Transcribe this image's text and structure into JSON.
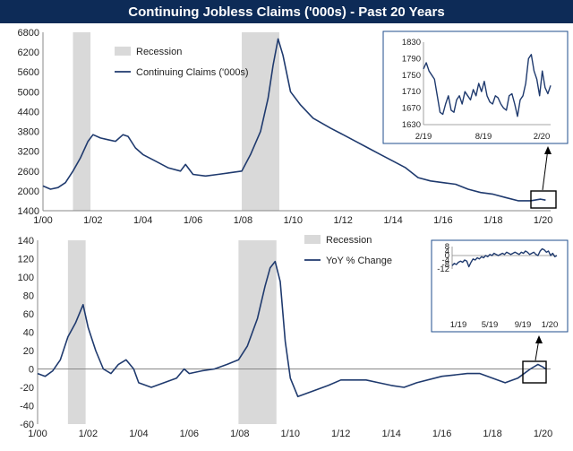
{
  "title": "Continuing Jobless Claims ('000s) - Past 20 Years",
  "colors": {
    "title_bg": "#0d2b57",
    "line": "#1f3a6e",
    "recession": "#d9d9d9",
    "inset_border": "#1f4e8c"
  },
  "chart_data": [
    {
      "id": "top-main",
      "type": "line",
      "title": "",
      "ylim": [
        1400,
        6800
      ],
      "yticks": [
        "6800",
        "6200",
        "5600",
        "5000",
        "4400",
        "3800",
        "3200",
        "2600",
        "2000",
        "1400"
      ],
      "xticks": [
        "1/00",
        "1/02",
        "1/04",
        "1/06",
        "1/08",
        "1/10",
        "1/12",
        "1/14",
        "1/16",
        "1/18",
        "1/20"
      ],
      "legend": [
        "Recession",
        "Continuing Claims ('000s)"
      ],
      "recessions": [
        [
          2001.2,
          2001.9
        ],
        [
          2007.95,
          2009.45
        ]
      ],
      "x": [
        2000.0,
        2000.3,
        2000.6,
        2000.9,
        2001.2,
        2001.5,
        2001.8,
        2002.0,
        2002.3,
        2002.6,
        2002.9,
        2003.2,
        2003.4,
        2003.7,
        2004.0,
        2004.5,
        2005.0,
        2005.5,
        2005.7,
        2006.0,
        2006.5,
        2007.0,
        2007.5,
        2007.95,
        2008.3,
        2008.7,
        2009.0,
        2009.2,
        2009.4,
        2009.6,
        2009.9,
        2010.3,
        2010.8,
        2011.5,
        2012.0,
        2012.5,
        2013.0,
        2013.5,
        2014.0,
        2014.5,
        2015.0,
        2015.5,
        2016.0,
        2016.5,
        2017.0,
        2017.5,
        2018.0,
        2018.5,
        2019.0,
        2019.5,
        2019.9,
        2020.1
      ],
      "y": [
        2150,
        2050,
        2100,
        2250,
        2600,
        3000,
        3500,
        3700,
        3600,
        3550,
        3500,
        3700,
        3650,
        3300,
        3100,
        2900,
        2700,
        2600,
        2800,
        2500,
        2450,
        2500,
        2550,
        2600,
        3100,
        3800,
        4800,
        5800,
        6600,
        6100,
        5000,
        4600,
        4200,
        3900,
        3700,
        3500,
        3300,
        3100,
        2900,
        2700,
        2400,
        2300,
        2250,
        2200,
        2050,
        1950,
        1900,
        1800,
        1700,
        1700,
        1750,
        1720
      ]
    },
    {
      "id": "top-inset",
      "type": "line",
      "ylim": [
        1630,
        1830
      ],
      "yticks": [
        "1830",
        "1790",
        "1750",
        "1710",
        "1670",
        "1630"
      ],
      "xticks": [
        "2/19",
        "8/19",
        "2/20"
      ],
      "x": [
        0,
        0.5,
        1,
        1.5,
        2,
        2.5,
        3,
        3.5,
        4,
        4.5,
        5,
        5.5,
        6,
        6.5,
        7,
        7.5,
        8,
        8.5,
        9,
        9.5,
        10,
        10.5,
        11,
        11.5,
        12,
        12.5,
        13,
        13.5,
        14,
        14.5,
        15,
        15.5,
        16,
        16.5,
        17,
        17.5,
        18,
        18.5,
        19,
        19.5,
        20,
        20.5,
        21,
        21.5,
        22,
        22.5,
        23
      ],
      "y": [
        1765,
        1780,
        1760,
        1750,
        1740,
        1700,
        1660,
        1655,
        1680,
        1700,
        1665,
        1660,
        1690,
        1700,
        1680,
        1710,
        1700,
        1690,
        1715,
        1700,
        1730,
        1710,
        1735,
        1700,
        1685,
        1680,
        1700,
        1695,
        1680,
        1670,
        1665,
        1700,
        1705,
        1680,
        1650,
        1690,
        1700,
        1730,
        1790,
        1800,
        1760,
        1740,
        1700,
        1760,
        1720,
        1705,
        1725
      ]
    },
    {
      "id": "bottom-main",
      "type": "line",
      "ylim": [
        -60,
        140
      ],
      "yticks": [
        "140",
        "120",
        "100",
        "80",
        "60",
        "40",
        "20",
        "0",
        "-20",
        "-40",
        "-60"
      ],
      "xticks": [
        "1/00",
        "1/02",
        "1/04",
        "1/06",
        "1/08",
        "1/10",
        "1/12",
        "1/14",
        "1/16",
        "1/18",
        "1/20"
      ],
      "legend": [
        "Recession",
        "YoY % Change"
      ],
      "recessions": [
        [
          2001.2,
          2001.9
        ],
        [
          2007.95,
          2009.45
        ]
      ],
      "x": [
        2000.0,
        2000.3,
        2000.6,
        2000.9,
        2001.2,
        2001.5,
        2001.8,
        2002.0,
        2002.3,
        2002.6,
        2002.9,
        2003.2,
        2003.5,
        2003.8,
        2004.0,
        2004.5,
        2005.0,
        2005.5,
        2005.8,
        2006.0,
        2006.5,
        2007.0,
        2007.5,
        2007.95,
        2008.3,
        2008.7,
        2009.0,
        2009.2,
        2009.4,
        2009.6,
        2009.8,
        2010.0,
        2010.3,
        2010.8,
        2011.5,
        2012.0,
        2013.0,
        2013.5,
        2014.0,
        2014.5,
        2015.0,
        2016.0,
        2017.0,
        2017.5,
        2018.0,
        2018.5,
        2019.0,
        2019.5,
        2019.8,
        2020.0,
        2020.1
      ],
      "y": [
        -5,
        -8,
        -2,
        10,
        35,
        50,
        70,
        45,
        20,
        0,
        -5,
        5,
        10,
        0,
        -15,
        -20,
        -15,
        -10,
        0,
        -5,
        -2,
        0,
        5,
        10,
        25,
        55,
        90,
        110,
        117,
        95,
        30,
        -10,
        -30,
        -25,
        -18,
        -12,
        -12,
        -15,
        -18,
        -20,
        -15,
        -8,
        -5,
        -5,
        -10,
        -15,
        -10,
        0,
        5,
        2,
        0
      ]
    },
    {
      "id": "bottom-inset",
      "type": "line",
      "ylim": [
        -12,
        8
      ],
      "yticks": [
        "8",
        "4",
        "0",
        "-4",
        "-8",
        "-12"
      ],
      "xticks": [
        "1/19",
        "5/19",
        "9/19",
        "1/20"
      ],
      "x": [
        0,
        0.5,
        1,
        1.5,
        2,
        2.5,
        3,
        3.5,
        4,
        4.5,
        5,
        5.5,
        6,
        6.5,
        7,
        7.5,
        8,
        8.5,
        9,
        9.5,
        10,
        10.5,
        11,
        11.5,
        12,
        12.5,
        13,
        13.5,
        14,
        14.5,
        15,
        15.5,
        16,
        16.5,
        17,
        17.5,
        18,
        18.5,
        19,
        19.5,
        20,
        20.5,
        21,
        21.5,
        22,
        22.5,
        23,
        23.5,
        24,
        24.5,
        25
      ],
      "y": [
        -9,
        -7,
        -8,
        -6,
        -5,
        -6,
        -4,
        -5,
        -10,
        -6,
        -3,
        -4,
        -2,
        -3,
        -1,
        -2,
        0,
        -1,
        1,
        0,
        2,
        1,
        0,
        1,
        2,
        1,
        3,
        2,
        1,
        2,
        3,
        2,
        1,
        3,
        2,
        4,
        3,
        1,
        2,
        3,
        1,
        0,
        4,
        6,
        5,
        3,
        4,
        0,
        2,
        -1,
        0
      ]
    }
  ]
}
